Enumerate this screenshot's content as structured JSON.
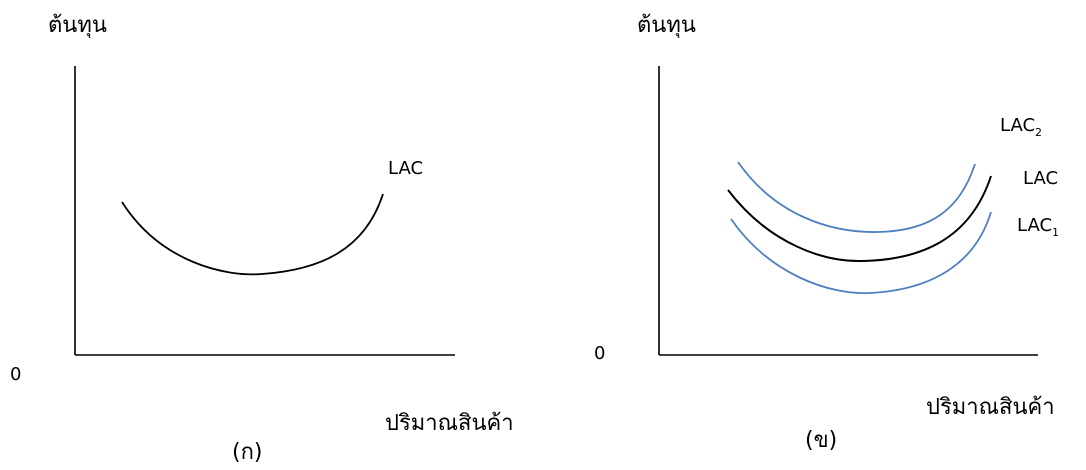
{
  "panel_a": {
    "y_axis_label": "ต้นทุน",
    "x_axis_label": "ปริมาณสินค้า",
    "origin_label": "0",
    "panel_label": "(ก)",
    "curve_label": "LAC"
  },
  "panel_b": {
    "y_axis_label": "ต้นทุน",
    "x_axis_label": "ปริมาณสินค้า",
    "origin_label": "0",
    "panel_label": "(ข)",
    "curves": [
      {
        "base": "LAC",
        "subscript": "2",
        "color": "#4f7fbf"
      },
      {
        "base": "LAC",
        "subscript": "",
        "color": "#000000"
      },
      {
        "base": "LAC",
        "subscript": "1",
        "color": "#4f7fbf"
      }
    ]
  },
  "colors": {
    "axis": "#000000",
    "lac_curve": "#000000",
    "shifted_curves": "#4f7fbf"
  }
}
